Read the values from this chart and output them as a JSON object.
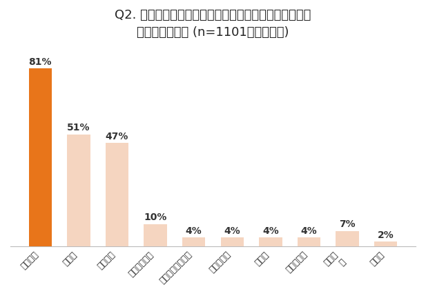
{
  "title_line1": "Q2. 今年の家計支出のなかで、値上がりを感じて困った",
  "title_line2": "ものは何ですか (n=1101、複数回答)",
  "categories": [
    "食料品費",
    "光熱費",
    "日用品費",
    "交通・通信費",
    "家具・家事用品費",
    "保険医療費",
    "被服費",
    "教養娯楽費",
    "特にな\nし",
    "その他"
  ],
  "values": [
    81,
    51,
    47,
    10,
    4,
    4,
    4,
    4,
    7,
    2
  ],
  "bar_colors": [
    "#E8751A",
    "#F5D5C0",
    "#F5D5C0",
    "#F5D5C0",
    "#F5D5C0",
    "#F5D5C0",
    "#F5D5C0",
    "#F5D5C0",
    "#F5D5C0",
    "#F5D5C0"
  ],
  "value_labels": [
    "81%",
    "51%",
    "47%",
    "10%",
    "4%",
    "4%",
    "4%",
    "4%",
    "7%",
    "2%"
  ],
  "ylim": [
    0,
    90
  ],
  "background_color": "#ffffff",
  "title_fontsize": 13,
  "label_fontsize": 10,
  "tick_fontsize": 9
}
